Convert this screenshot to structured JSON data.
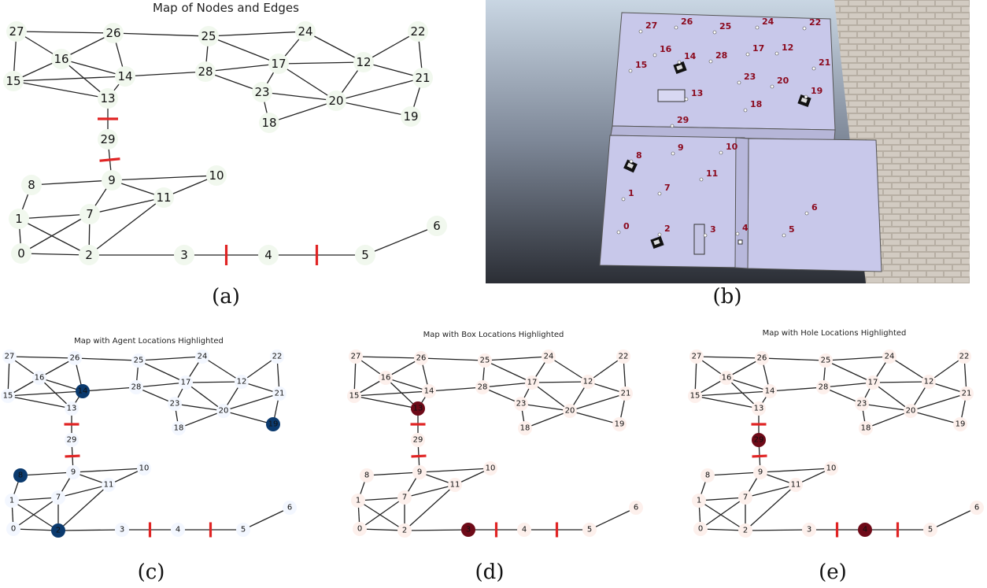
{
  "panels": {
    "a": {
      "title": "Map of Nodes and Edges",
      "caption": "(a)"
    },
    "b": {
      "caption": "(b)"
    },
    "c": {
      "title": "Map with Agent Locations Highlighted",
      "caption": "(c)"
    },
    "d": {
      "title": "Map with Box Locations Highlighted",
      "caption": "(d)"
    },
    "e": {
      "title": "Map with Hole Locations Highlighted",
      "caption": "(e)"
    }
  },
  "graph": {
    "nodes": [
      "0",
      "1",
      "2",
      "3",
      "4",
      "5",
      "6",
      "7",
      "8",
      "9",
      "10",
      "11",
      "12",
      "13",
      "14",
      "15",
      "16",
      "17",
      "18",
      "19",
      "20",
      "21",
      "22",
      "23",
      "24",
      "25",
      "26",
      "27",
      "28",
      "29"
    ],
    "edges": [
      [
        "27",
        "26"
      ],
      [
        "27",
        "16"
      ],
      [
        "27",
        "15"
      ],
      [
        "26",
        "16"
      ],
      [
        "26",
        "14"
      ],
      [
        "26",
        "25"
      ],
      [
        "16",
        "15"
      ],
      [
        "16",
        "13"
      ],
      [
        "16",
        "14"
      ],
      [
        "15",
        "14"
      ],
      [
        "15",
        "13"
      ],
      [
        "14",
        "13"
      ],
      [
        "14",
        "28"
      ],
      [
        "25",
        "28"
      ],
      [
        "25",
        "17"
      ],
      [
        "25",
        "24"
      ],
      [
        "24",
        "17"
      ],
      [
        "24",
        "12"
      ],
      [
        "22",
        "12"
      ],
      [
        "22",
        "21"
      ],
      [
        "28",
        "17"
      ],
      [
        "28",
        "23"
      ],
      [
        "17",
        "12"
      ],
      [
        "17",
        "23"
      ],
      [
        "17",
        "20"
      ],
      [
        "12",
        "20"
      ],
      [
        "12",
        "21"
      ],
      [
        "23",
        "18"
      ],
      [
        "23",
        "20"
      ],
      [
        "20",
        "21"
      ],
      [
        "20",
        "18"
      ],
      [
        "20",
        "19"
      ],
      [
        "21",
        "19"
      ],
      [
        "13",
        "29"
      ],
      [
        "29",
        "9"
      ],
      [
        "8",
        "9"
      ],
      [
        "8",
        "1"
      ],
      [
        "9",
        "7"
      ],
      [
        "9",
        "11"
      ],
      [
        "9",
        "10"
      ],
      [
        "10",
        "11"
      ],
      [
        "1",
        "7"
      ],
      [
        "1",
        "0"
      ],
      [
        "1",
        "2"
      ],
      [
        "7",
        "0"
      ],
      [
        "7",
        "2"
      ],
      [
        "11",
        "7"
      ],
      [
        "11",
        "2"
      ],
      [
        "0",
        "2"
      ],
      [
        "2",
        "3"
      ],
      [
        "3",
        "4"
      ],
      [
        "4",
        "5"
      ],
      [
        "5",
        "6"
      ]
    ],
    "blocked_edges": [
      [
        "13",
        "29"
      ],
      [
        "29",
        "9"
      ],
      [
        "3",
        "4"
      ],
      [
        "4",
        "5"
      ]
    ]
  },
  "highlights": {
    "agents": {
      "nodes": [
        "14",
        "19",
        "8",
        "2"
      ],
      "color": "#0b3a6e",
      "base_color": "#f3f7ff"
    },
    "boxes": {
      "nodes": [
        "13",
        "3"
      ],
      "color": "#6e0a18",
      "base_color": "#fdf0ec"
    },
    "holes": {
      "nodes": [
        "29",
        "4"
      ],
      "color": "#6e0a18",
      "base_color": "#fdf0ec"
    }
  },
  "simulation": {
    "labels": [
      "27",
      "26",
      "25",
      "24",
      "22",
      "16",
      "14",
      "28",
      "17",
      "12",
      "15",
      "21",
      "23",
      "20",
      "13",
      "19",
      "18",
      "29",
      "8",
      "9",
      "10",
      "11",
      "1",
      "7",
      "6",
      "0",
      "2",
      "3",
      "4",
      "5"
    ],
    "colors": {
      "floor": "#c8c8ea",
      "ground": "#b5ada2",
      "background": "#6f7480",
      "label": "#8b0a1e"
    }
  }
}
